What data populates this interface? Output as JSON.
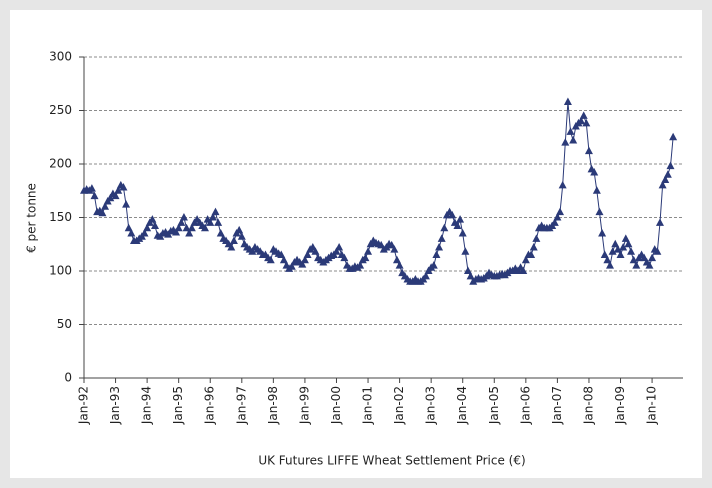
{
  "chart_data": {
    "type": "line",
    "x_label": "UK Futures LIFFE Wheat Settlement Price (€)",
    "y_label": "€ per tonne",
    "color": "#2b3a78",
    "marker": "triangle",
    "grid": true,
    "ylim": [
      0,
      300
    ],
    "yticks": [
      0,
      50,
      100,
      150,
      200,
      250,
      300
    ],
    "categories": [
      "Jan-92",
      null,
      null,
      null,
      null,
      null,
      null,
      null,
      null,
      null,
      null,
      null,
      "Jan-93",
      null,
      null,
      null,
      null,
      null,
      null,
      null,
      null,
      null,
      null,
      null,
      "Jan-94",
      null,
      null,
      null,
      null,
      null,
      null,
      null,
      null,
      null,
      null,
      null,
      "Jan-95",
      null,
      null,
      null,
      null,
      null,
      null,
      null,
      null,
      null,
      null,
      null,
      "Jan-96",
      null,
      null,
      null,
      null,
      null,
      null,
      null,
      null,
      null,
      null,
      null,
      "Jan-97",
      null,
      null,
      null,
      null,
      null,
      null,
      null,
      null,
      null,
      null,
      null,
      "Jan-98",
      null,
      null,
      null,
      null,
      null,
      null,
      null,
      null,
      null,
      null,
      null,
      "Jan-99",
      null,
      null,
      null,
      null,
      null,
      null,
      null,
      null,
      null,
      null,
      null,
      "Jan-00",
      null,
      null,
      null,
      null,
      null,
      null,
      null,
      null,
      null,
      null,
      null,
      "Jan-01",
      null,
      null,
      null,
      null,
      null,
      null,
      null,
      null,
      null,
      null,
      null,
      "Jan-02",
      null,
      null,
      null,
      null,
      null,
      null,
      null,
      null,
      null,
      null,
      null,
      "Jan-03",
      null,
      null,
      null,
      null,
      null,
      null,
      null,
      null,
      null,
      null,
      null,
      "Jan-04",
      null,
      null,
      null,
      null,
      null,
      null,
      null,
      null,
      null,
      null,
      null,
      "Jan-05",
      null,
      null,
      null,
      null,
      null,
      null,
      null,
      null,
      null,
      null,
      null,
      "Jan-06",
      null,
      null,
      null,
      null,
      null,
      null,
      null,
      null,
      null,
      null,
      null,
      "Jan-07",
      null,
      null,
      null,
      null,
      null,
      null,
      null,
      null,
      null,
      null,
      null,
      "Jan-08",
      null,
      null,
      null,
      null,
      null,
      null,
      null,
      null,
      null,
      null,
      null,
      "Jan-09",
      null,
      null,
      null,
      null,
      null,
      null,
      null,
      null,
      null,
      null,
      null,
      "Jan-10",
      null,
      null,
      null,
      null,
      null,
      null,
      null,
      null
    ],
    "values": [
      175,
      176,
      175,
      177,
      170,
      155,
      156,
      154,
      160,
      165,
      168,
      172,
      170,
      175,
      180,
      178,
      162,
      140,
      135,
      128,
      128,
      130,
      132,
      135,
      140,
      145,
      148,
      142,
      133,
      132,
      135,
      136,
      134,
      137,
      138,
      136,
      140,
      145,
      150,
      140,
      135,
      140,
      145,
      148,
      145,
      142,
      140,
      148,
      145,
      150,
      155,
      145,
      135,
      130,
      128,
      125,
      122,
      128,
      135,
      138,
      132,
      125,
      122,
      120,
      118,
      122,
      120,
      118,
      115,
      115,
      112,
      110,
      120,
      118,
      116,
      115,
      110,
      105,
      102,
      104,
      108,
      110,
      108,
      106,
      110,
      115,
      120,
      122,
      118,
      112,
      110,
      108,
      110,
      112,
      114,
      115,
      118,
      122,
      115,
      112,
      105,
      102,
      102,
      104,
      103,
      105,
      110,
      112,
      118,
      125,
      128,
      126,
      125,
      124,
      120,
      122,
      125,
      124,
      120,
      110,
      105,
      98,
      95,
      92,
      90,
      90,
      92,
      90,
      90,
      92,
      95,
      100,
      103,
      105,
      115,
      122,
      130,
      140,
      152,
      155,
      152,
      145,
      142,
      148,
      135,
      118,
      100,
      95,
      90,
      92,
      93,
      92,
      93,
      95,
      98,
      96,
      95,
      95,
      96,
      97,
      96,
      98,
      100,
      100,
      102,
      100,
      103,
      100,
      110,
      115,
      115,
      122,
      130,
      140,
      142,
      140,
      140,
      140,
      142,
      145,
      150,
      155,
      180,
      220,
      258,
      230,
      222,
      235,
      238,
      240,
      245,
      238,
      212,
      195,
      192,
      175,
      155,
      135,
      115,
      110,
      105,
      118,
      125,
      120,
      115,
      122,
      130,
      125,
      118,
      110,
      105,
      112,
      115,
      112,
      108,
      105,
      112,
      120,
      118,
      145,
      180,
      185,
      190,
      198,
      225
    ]
  }
}
